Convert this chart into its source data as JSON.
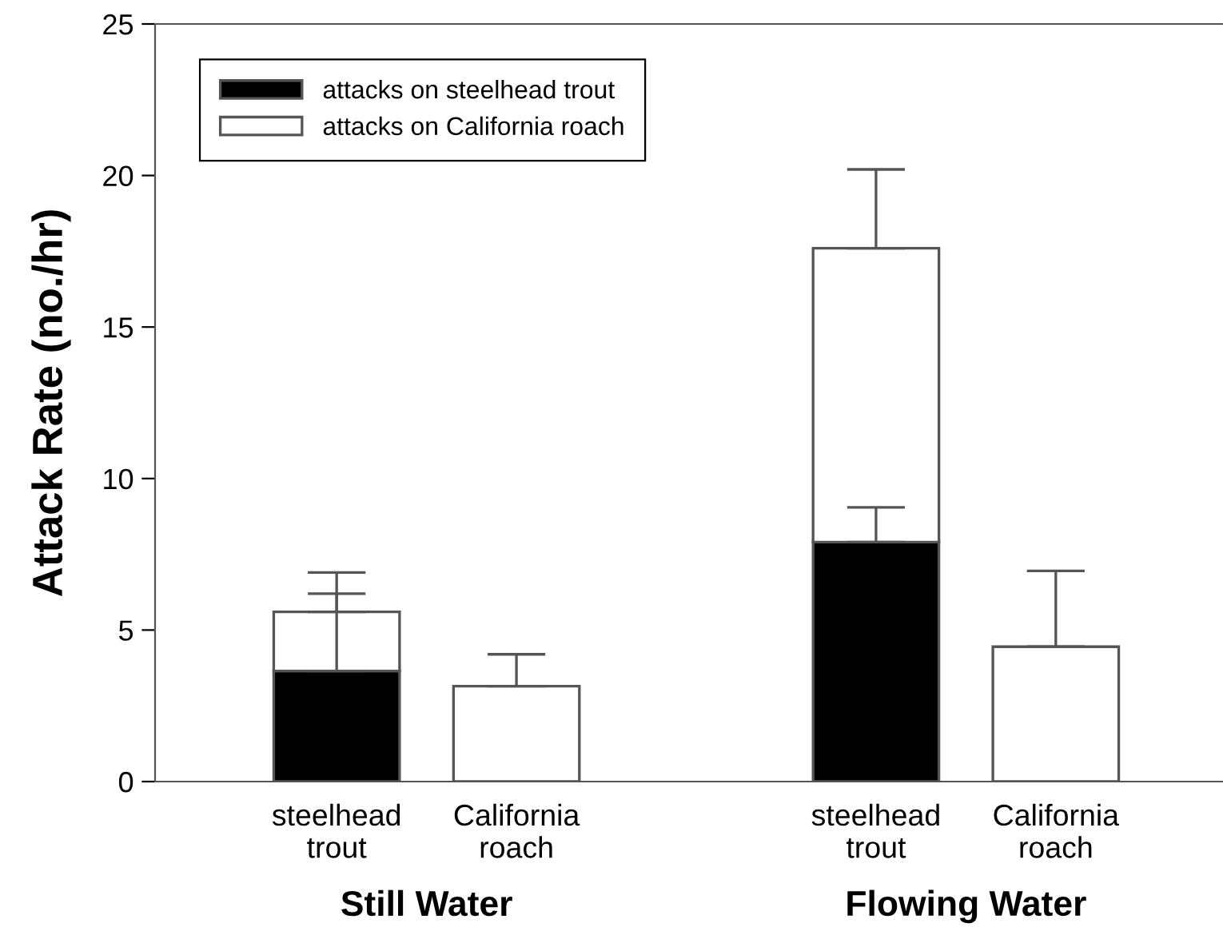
{
  "chart_data": {
    "type": "bar",
    "stacked": true,
    "ylabel": "Attack Rate (no./hr)",
    "categories": [
      "steelhead\ntrout",
      "California\nroach",
      null,
      "steelhead\ntrout",
      "California\nroach"
    ],
    "series": [
      {
        "name": "attacks on steelhead trout",
        "color": "#000000",
        "values": [
          3.65,
          null,
          null,
          7.9,
          null
        ],
        "errors": [
          [
            3.65,
            6.2
          ],
          null,
          null,
          [
            7.9,
            9.05
          ],
          null
        ]
      },
      {
        "name": "attacks on California roach",
        "color": "#ffffff",
        "values": [
          1.95,
          3.15,
          null,
          9.7,
          4.45
        ],
        "errors": [
          [
            5.6,
            6.9
          ],
          [
            3.15,
            4.2
          ],
          null,
          [
            17.6,
            20.2
          ],
          [
            4.45,
            6.95
          ]
        ]
      }
    ],
    "ylim": [
      0,
      25
    ],
    "yticks": [
      0,
      5,
      10,
      15,
      20,
      25
    ],
    "grid": false,
    "legend": "top left",
    "annotations": [
      "Still Water",
      "Flowing Water"
    ]
  }
}
